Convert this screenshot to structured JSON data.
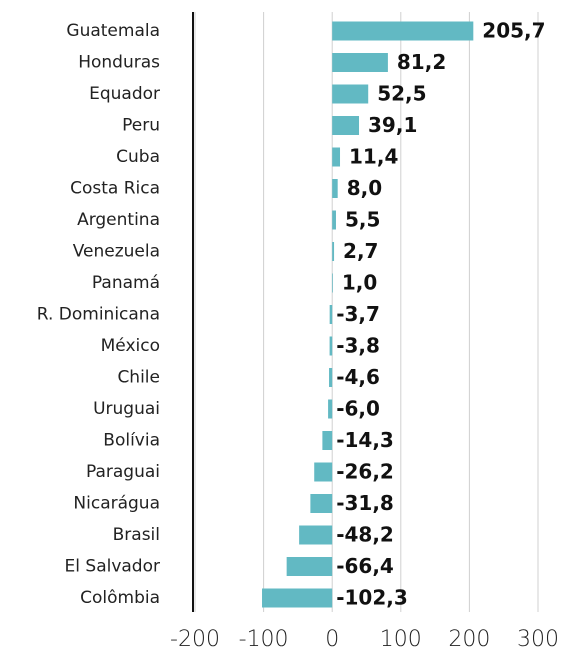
{
  "chart_data": {
    "type": "hbar",
    "categories": [
      "Guatemala",
      "Honduras",
      "Equador",
      "Peru",
      "Cuba",
      "Costa Rica",
      "Argentina",
      "Venezuela",
      "Panamá",
      "R. Dominicana",
      "México",
      "Chile",
      "Uruguai",
      "Bolívia",
      "Paraguai",
      "Nicarágua",
      "Brasil",
      "El Salvador",
      "Colômbia"
    ],
    "values": [
      205.7,
      81.2,
      52.5,
      39.1,
      11.4,
      8.0,
      5.5,
      2.7,
      1.0,
      -3.7,
      -3.8,
      -4.6,
      -6.0,
      -14.3,
      -26.2,
      -31.8,
      -48.2,
      -66.4,
      -102.3
    ],
    "value_labels": [
      "205,7",
      "81,2",
      "52,5",
      "39,1",
      "11,4",
      "8,0",
      "5,5",
      "2,7",
      "1,0",
      "-3,7",
      "-3,8",
      "-4,6",
      "-6,0",
      "-14,3",
      "-26,2",
      "-31,8",
      "-48,2",
      "-66,4",
      "-102,3"
    ],
    "color": "#62b9c3",
    "xlim": [
      -200,
      300
    ],
    "xticks": [
      -200,
      -100,
      0,
      100,
      200,
      300
    ],
    "grid": true
  }
}
